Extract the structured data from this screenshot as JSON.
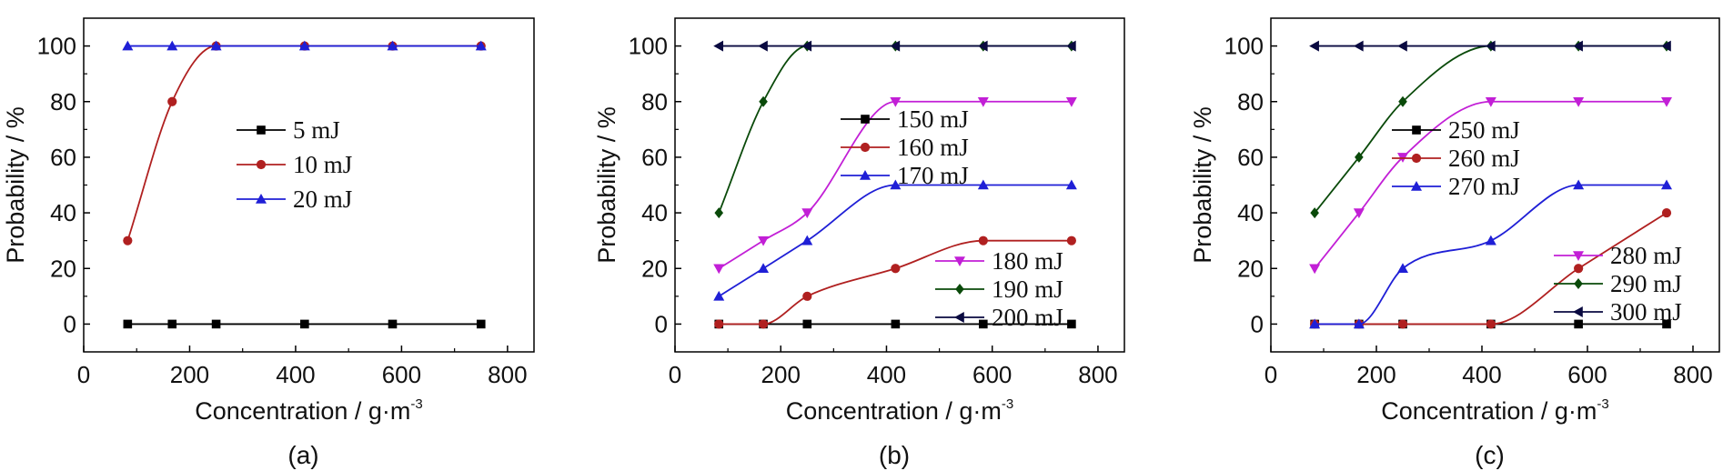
{
  "chart_data": [
    {
      "type": "line",
      "panel_label": "(a)",
      "xlabel": "Concentration / g·m",
      "xlabel_sup": "-3",
      "ylabel": "Probability / %",
      "xlim": [
        0,
        850
      ],
      "ylim": [
        -10,
        110
      ],
      "xticks": [
        0,
        200,
        400,
        600,
        800
      ],
      "yticks": [
        0,
        20,
        40,
        60,
        80,
        100
      ],
      "grid": false,
      "legend_position": "center-right",
      "series": [
        {
          "name": "5 mJ",
          "color": "#000000",
          "marker": "square",
          "x": [
            83,
            167,
            250,
            417,
            583,
            750
          ],
          "y": [
            0,
            0,
            0,
            0,
            0,
            0
          ]
        },
        {
          "name": "10 mJ",
          "color": "#b02020",
          "marker": "circle",
          "x": [
            83,
            167,
            250,
            417,
            583,
            750
          ],
          "y": [
            30,
            80,
            100,
            100,
            100,
            100
          ]
        },
        {
          "name": "20 mJ",
          "color": "#1f1fd6",
          "marker": "triangle-up",
          "x": [
            83,
            167,
            250,
            417,
            583,
            750
          ],
          "y": [
            100,
            100,
            100,
            100,
            100,
            100
          ]
        }
      ]
    },
    {
      "type": "line",
      "panel_label": "(b)",
      "xlabel": "Concentration / g·m",
      "xlabel_sup": "-3",
      "ylabel": "Probability / %",
      "xlim": [
        0,
        850
      ],
      "ylim": [
        -10,
        110
      ],
      "xticks": [
        0,
        200,
        400,
        600,
        800
      ],
      "yticks": [
        0,
        20,
        40,
        60,
        80,
        100
      ],
      "grid": false,
      "legend_position": "center-right, split",
      "series": [
        {
          "name": "150 mJ",
          "color": "#000000",
          "marker": "square",
          "x": [
            83,
            167,
            250,
            417,
            583,
            750
          ],
          "y": [
            0,
            0,
            0,
            0,
            0,
            0
          ]
        },
        {
          "name": "160 mJ",
          "color": "#b02020",
          "marker": "circle",
          "x": [
            83,
            167,
            250,
            417,
            583,
            750
          ],
          "y": [
            0,
            0,
            10,
            20,
            30,
            30
          ]
        },
        {
          "name": "170 mJ",
          "color": "#1f1fd6",
          "marker": "triangle-up",
          "x": [
            83,
            167,
            250,
            417,
            583,
            750
          ],
          "y": [
            10,
            20,
            30,
            50,
            50,
            50
          ]
        },
        {
          "name": "180 mJ",
          "color": "#c21fd6",
          "marker": "triangle-down",
          "x": [
            83,
            167,
            250,
            417,
            583,
            750
          ],
          "y": [
            20,
            30,
            40,
            80,
            80,
            80
          ]
        },
        {
          "name": "190 mJ",
          "color": "#0a4a0a",
          "marker": "diamond",
          "x": [
            83,
            167,
            250,
            417,
            583,
            750
          ],
          "y": [
            40,
            80,
            100,
            100,
            100,
            100
          ]
        },
        {
          "name": "200 mJ",
          "color": "#0a0a40",
          "marker": "triangle-left",
          "x": [
            83,
            167,
            250,
            417,
            583,
            750
          ],
          "y": [
            100,
            100,
            100,
            100,
            100,
            100
          ]
        }
      ]
    },
    {
      "type": "line",
      "panel_label": "(c)",
      "xlabel": "Concentration / g·m",
      "xlabel_sup": "-3",
      "ylabel": "Probability / %",
      "xlim": [
        0,
        850
      ],
      "ylim": [
        -10,
        110
      ],
      "xticks": [
        0,
        200,
        400,
        600,
        800
      ],
      "yticks": [
        0,
        20,
        40,
        60,
        80,
        100
      ],
      "grid": false,
      "legend_position": "center-right, split",
      "series": [
        {
          "name": "250 mJ",
          "color": "#000000",
          "marker": "square",
          "x": [
            83,
            167,
            250,
            417,
            583,
            750
          ],
          "y": [
            0,
            0,
            0,
            0,
            0,
            0
          ]
        },
        {
          "name": "260 mJ",
          "color": "#b02020",
          "marker": "circle",
          "x": [
            83,
            167,
            250,
            417,
            583,
            750
          ],
          "y": [
            0,
            0,
            0,
            0,
            20,
            40
          ]
        },
        {
          "name": "270 mJ",
          "color": "#1f1fd6",
          "marker": "triangle-up",
          "x": [
            83,
            167,
            250,
            417,
            583,
            750
          ],
          "y": [
            0,
            0,
            20,
            30,
            50,
            50
          ]
        },
        {
          "name": "280 mJ",
          "color": "#c21fd6",
          "marker": "triangle-down",
          "x": [
            83,
            167,
            250,
            417,
            583,
            750
          ],
          "y": [
            20,
            40,
            60,
            80,
            80,
            80
          ]
        },
        {
          "name": "290 mJ",
          "color": "#0a4a0a",
          "marker": "diamond",
          "x": [
            83,
            167,
            250,
            417,
            583,
            750
          ],
          "y": [
            40,
            60,
            80,
            100,
            100,
            100
          ]
        },
        {
          "name": "300 mJ",
          "color": "#0a0a40",
          "marker": "triangle-left",
          "x": [
            83,
            167,
            250,
            417,
            583,
            750
          ],
          "y": [
            100,
            100,
            100,
            100,
            100,
            100
          ]
        }
      ]
    }
  ]
}
